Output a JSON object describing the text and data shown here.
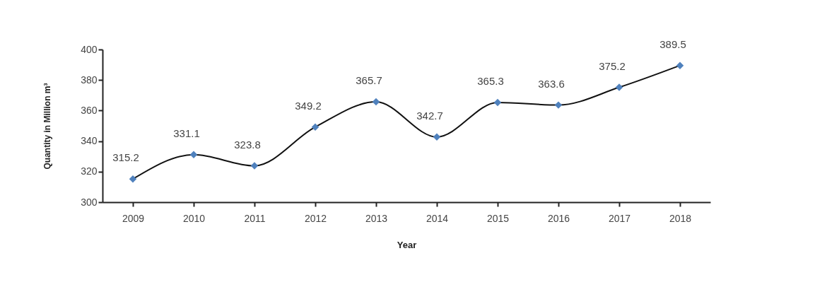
{
  "chart_data": {
    "type": "line",
    "xlabel": "Year",
    "ylabel": "Quantity in Million m³",
    "categories": [
      "2009",
      "2010",
      "2011",
      "2012",
      "2013",
      "2014",
      "2015",
      "2016",
      "2017",
      "2018"
    ],
    "series": [
      {
        "color": "#4f81bd",
        "values": [
          315.2,
          331.1,
          323.8,
          349.2,
          365.7,
          342.7,
          365.3,
          363.6,
          375.2,
          389.5
        ]
      }
    ],
    "ylim": [
      300,
      400
    ],
    "yticks": [
      300,
      320,
      340,
      360,
      380,
      400
    ],
    "grid": false,
    "legend": false,
    "marker": "diamond",
    "line_style": "solid",
    "data_labels": true
  }
}
